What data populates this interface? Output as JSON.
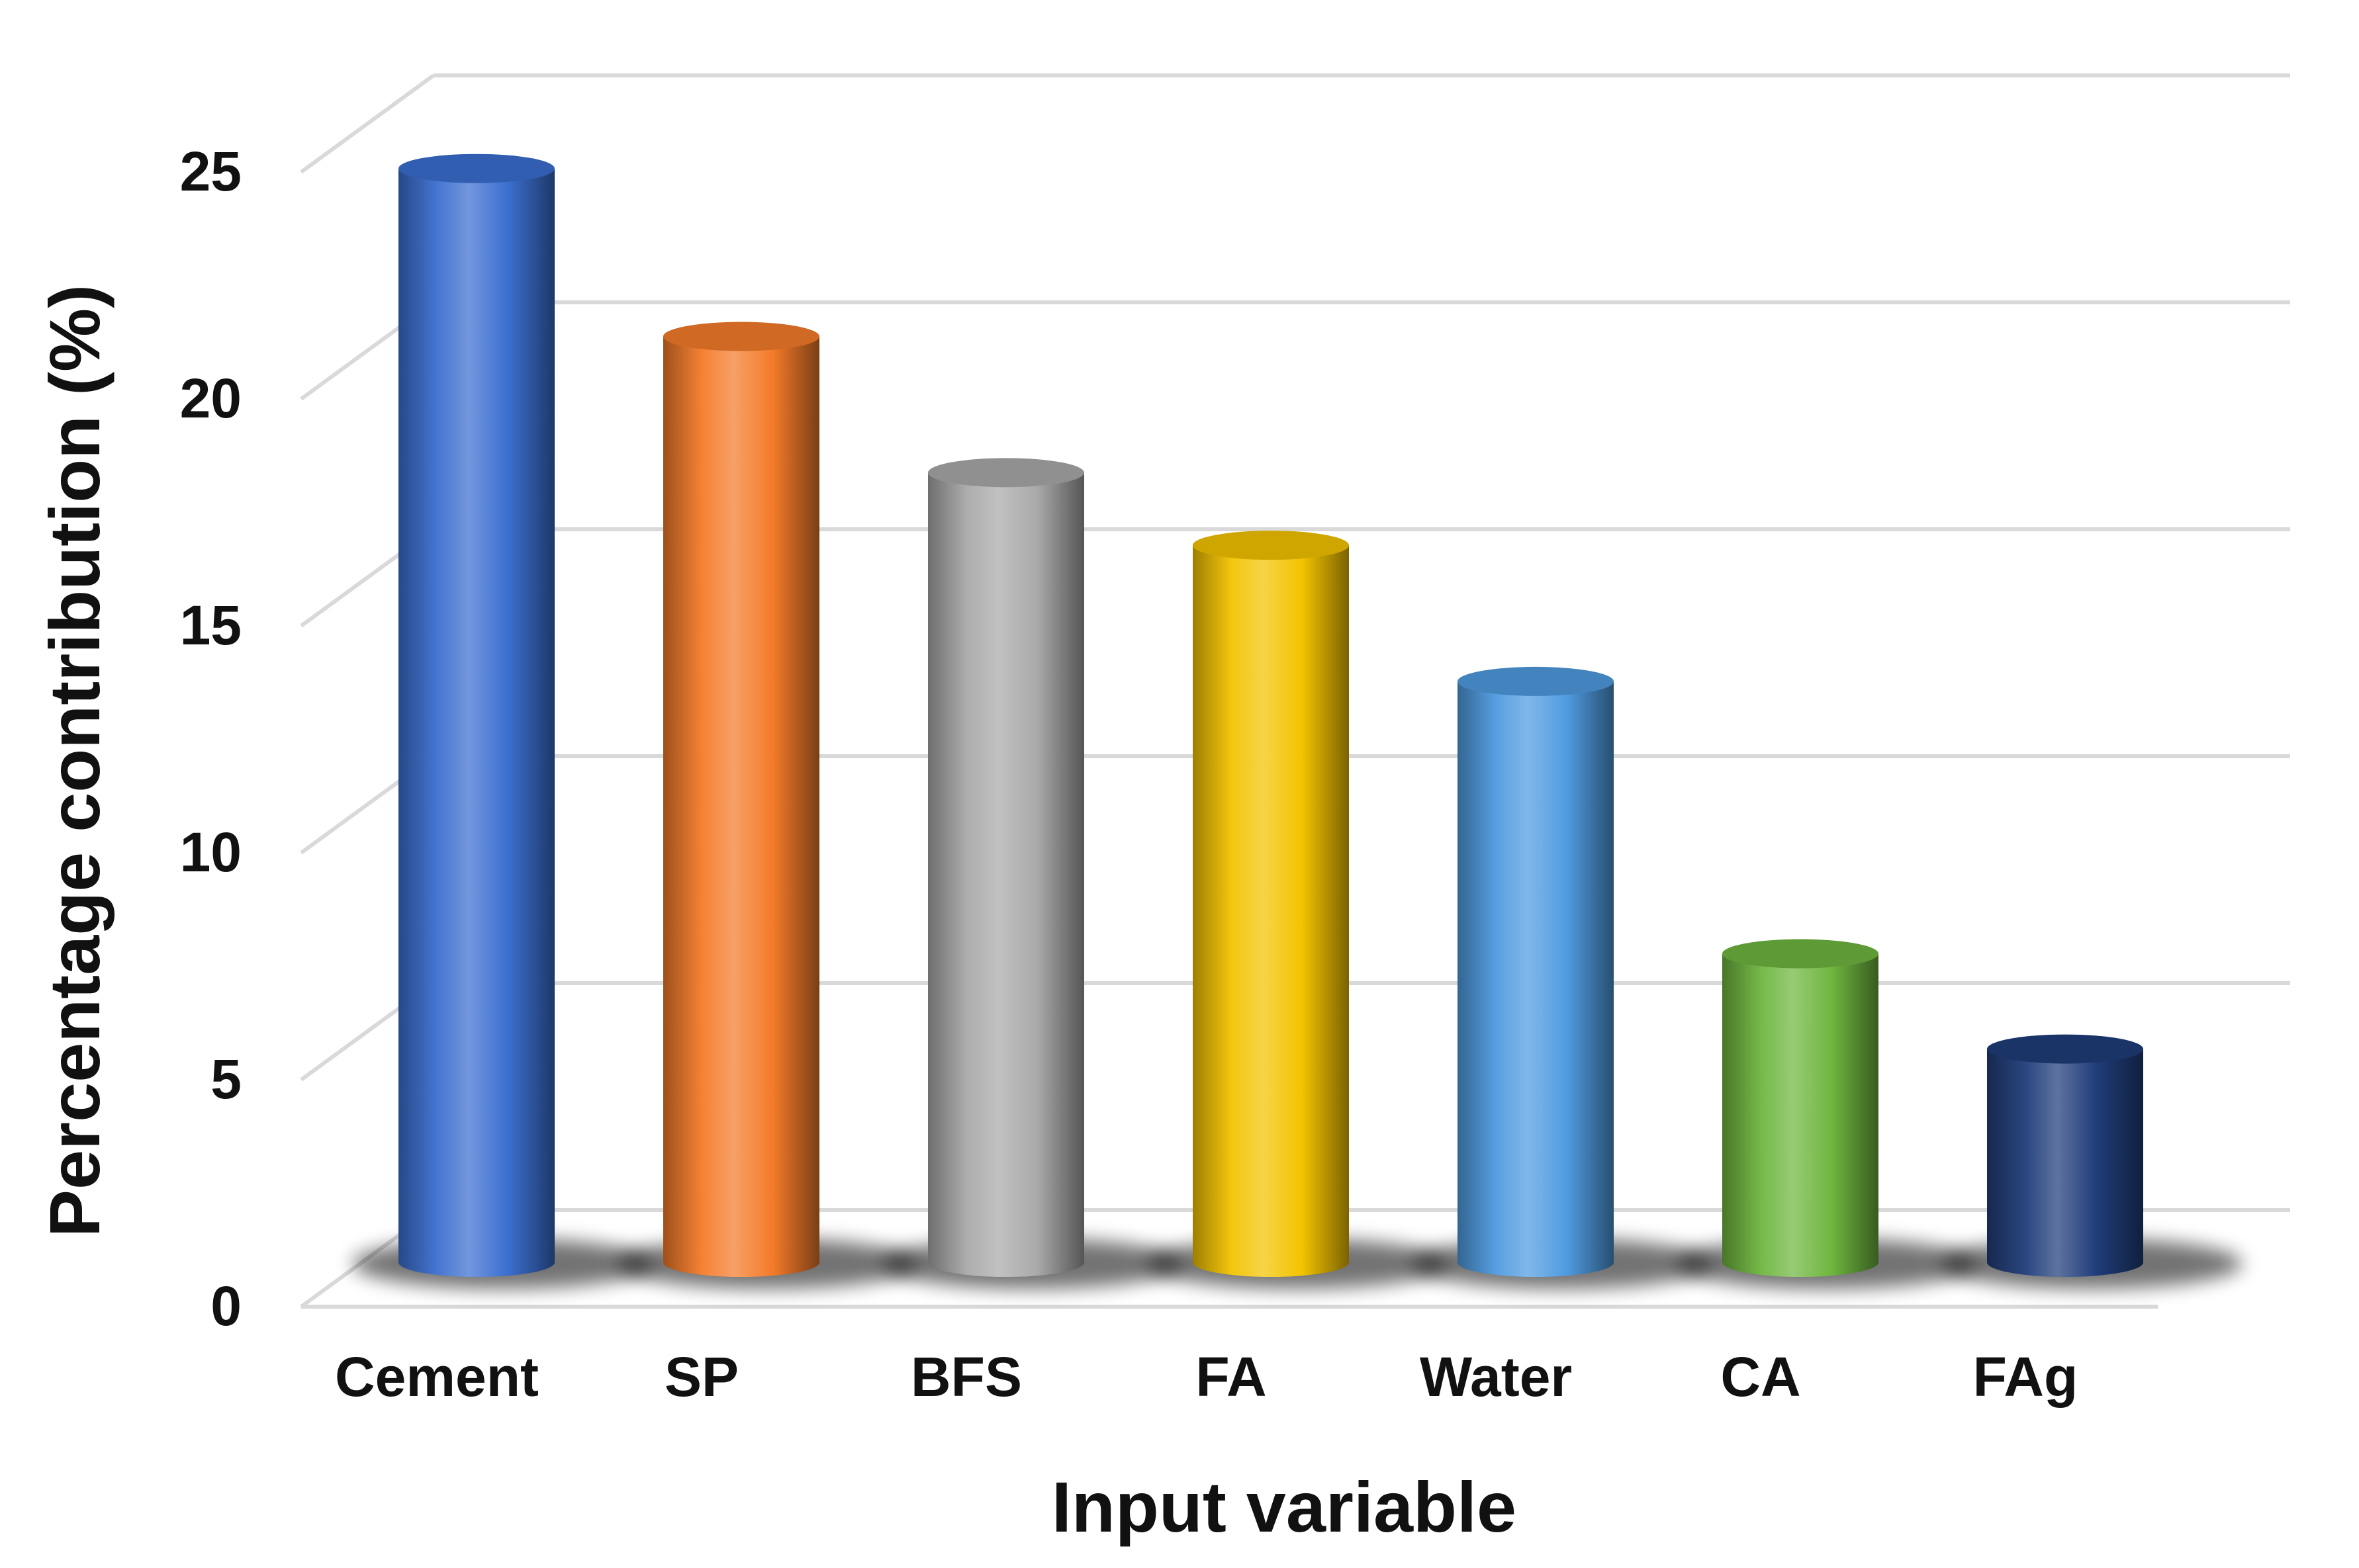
{
  "chart_data": {
    "type": "bar",
    "style": "3d-cylinder",
    "categories": [
      "Cement",
      "SP",
      "BFS",
      "FA",
      "Water",
      "CA",
      "FAg"
    ],
    "values": [
      24.1,
      20.4,
      17.4,
      15.8,
      12.8,
      6.8,
      4.7
    ],
    "colors": [
      "#3B6FD0",
      "#F47B2A",
      "#A9A9A9",
      "#F3C300",
      "#4F9BE0",
      "#6FB63F",
      "#203D7A"
    ],
    "xlabel": "Input variable",
    "ylabel": "Percentage contribution (%)",
    "ylim": [
      0,
      25
    ],
    "yticks": [
      0,
      5,
      10,
      15,
      20,
      25
    ],
    "grid": true,
    "legend": "none"
  }
}
